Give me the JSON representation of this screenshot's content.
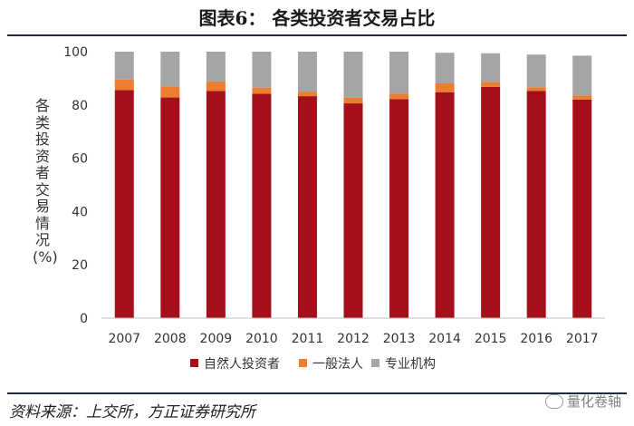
{
  "figure": {
    "title": "图表6：   各类投资者交易占比",
    "source": "资料来源：上交所，方正证券研究所",
    "watermark": "量化卷轴"
  },
  "chart_data": {
    "type": "bar",
    "stacked": true,
    "title": "",
    "xlabel": "",
    "ylabel": "各类投资者交易情况(%)",
    "ylim": [
      0,
      100
    ],
    "yticks": [
      0,
      20,
      40,
      60,
      80,
      100
    ],
    "grid": false,
    "legend_position": "bottom",
    "categories": [
      "2007",
      "2008",
      "2009",
      "2010",
      "2011",
      "2012",
      "2013",
      "2014",
      "2015",
      "2016",
      "2017"
    ],
    "series": [
      {
        "name": "自然人投资者",
        "color": "#a50f1a",
        "values": [
          85.6,
          82.8,
          85.2,
          84.2,
          83.3,
          80.6,
          82.2,
          84.8,
          86.8,
          85.3,
          82.0
        ]
      },
      {
        "name": "一般法人",
        "color": "#ed7d31",
        "values": [
          3.9,
          4.2,
          3.6,
          2.3,
          1.7,
          2.1,
          2.1,
          3.3,
          1.9,
          1.3,
          1.6
        ]
      },
      {
        "name": "专业机构",
        "color": "#a5a5a5",
        "values": [
          10.5,
          13.0,
          11.2,
          13.5,
          15.0,
          17.3,
          15.7,
          11.5,
          10.7,
          12.3,
          14.9
        ]
      }
    ]
  }
}
